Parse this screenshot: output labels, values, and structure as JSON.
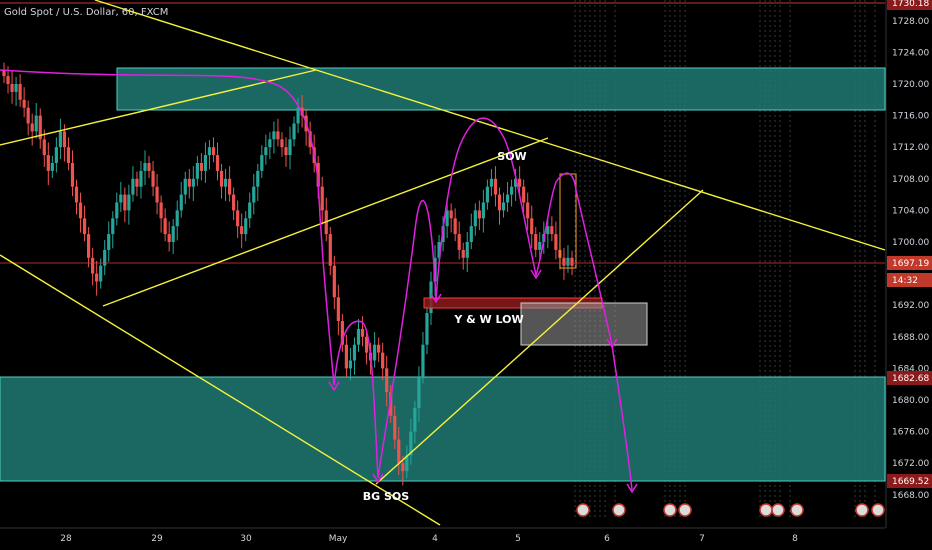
{
  "header": {
    "title": "Gold Spot / U.S. Dollar, 60, FXCM"
  },
  "chart_data": {
    "type": "candlestick",
    "symbol": "Gold Spot / U.S. Dollar",
    "interval": "60",
    "source": "FXCM",
    "ylim": [
      1666,
      1730
    ],
    "y_ticks": [
      "1728.00",
      "1724.00",
      "1720.00",
      "1716.00",
      "1712.00",
      "1708.00",
      "1704.00",
      "1700.00",
      "1692.00",
      "1688.00",
      "1684.00",
      "1680.00",
      "1676.00",
      "1672.00",
      "1668.00"
    ],
    "x_ticks": [
      "28",
      "29",
      "30",
      "May",
      "4",
      "5",
      "6",
      "7",
      "8"
    ],
    "price_badges": [
      {
        "value": "1730.18",
        "color": "#8b1a1a"
      },
      {
        "value": "1697.19",
        "color": "#c0392b"
      },
      {
        "value": "14:32",
        "color": "#c0392b"
      },
      {
        "value": "1682.68",
        "color": "#8b1a1a"
      },
      {
        "value": "1669.52",
        "color": "#8b1a1a"
      }
    ],
    "candles_close": [
      1721,
      1720,
      1719,
      1720,
      1718,
      1717,
      1715,
      1714,
      1716,
      1713,
      1711,
      1709,
      1710,
      1712,
      1714,
      1712,
      1710,
      1707,
      1705,
      1703,
      1701,
      1698,
      1696,
      1695,
      1697,
      1699,
      1701,
      1703,
      1705,
      1706,
      1704,
      1706,
      1708,
      1707,
      1709,
      1710,
      1709,
      1707,
      1705,
      1703,
      1701,
      1700,
      1702,
      1704,
      1706,
      1708,
      1707,
      1708,
      1710,
      1709,
      1711,
      1712,
      1711,
      1709,
      1707,
      1708,
      1706,
      1704,
      1702,
      1701,
      1703,
      1705,
      1707,
      1709,
      1711,
      1712,
      1713,
      1714,
      1713,
      1712,
      1711,
      1713,
      1715,
      1717,
      1716,
      1714,
      1712,
      1710,
      1707,
      1704,
      1701,
      1697,
      1693,
      1690,
      1687,
      1684,
      1685,
      1687,
      1689,
      1688,
      1686,
      1685,
      1687,
      1686,
      1684,
      1681,
      1678,
      1675,
      1672,
      1671,
      1673,
      1676,
      1679,
      1683,
      1687,
      1691,
      1695,
      1698,
      1700,
      1702,
      1704,
      1703,
      1701,
      1699,
      1698,
      1700,
      1702,
      1704,
      1703,
      1705,
      1707,
      1708,
      1706,
      1704,
      1705,
      1706,
      1707,
      1708,
      1707,
      1705,
      1703,
      1701,
      1699,
      1700,
      1701,
      1702,
      1701,
      1699,
      1698,
      1697,
      1698,
      1697
    ],
    "annotations": [
      {
        "text": "SOW"
      },
      {
        "text": "Y & W LOW"
      },
      {
        "text": "BG SOS"
      }
    ],
    "colors": {
      "bull": "#26a69a",
      "bear": "#ef5350",
      "zone": "#1e7a72",
      "trendline": "#f5f23b",
      "path": "#e020e0",
      "hline": "#e83a3a"
    }
  }
}
